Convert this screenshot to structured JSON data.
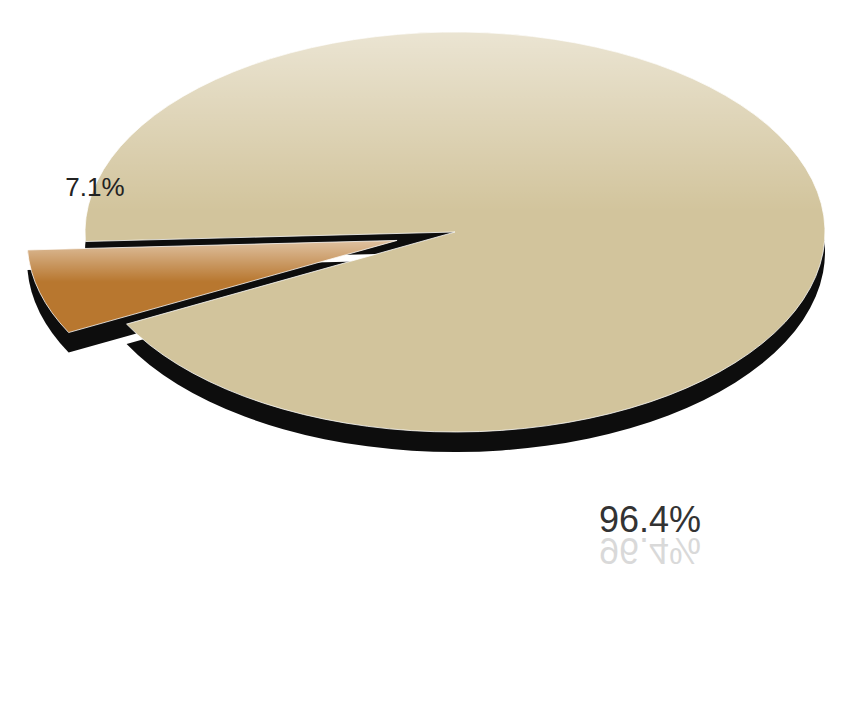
{
  "chart_data": {
    "type": "pie",
    "values": [
      7.1,
      96.4
    ],
    "value_labels": [
      "7.1%",
      "96.4%"
    ],
    "data_labels": true,
    "colors": [
      "#b8772f",
      "#d2c49c"
    ]
  }
}
